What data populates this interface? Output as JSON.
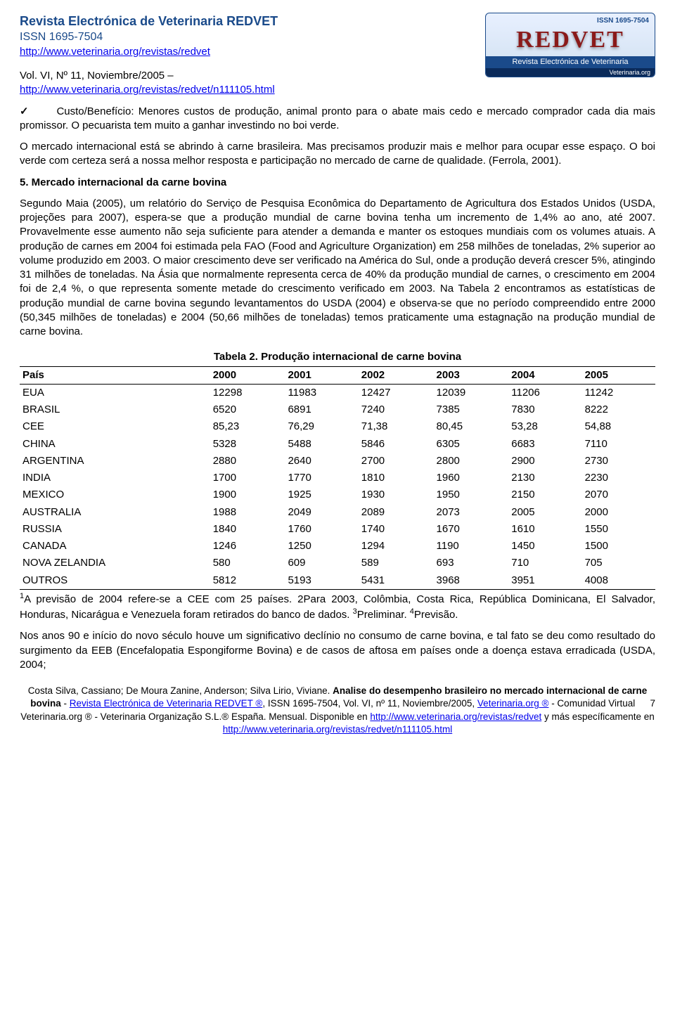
{
  "header": {
    "journal_title": "Revista Electrónica de Veterinaria REDVET",
    "issn_line": "ISSN 1695-7504",
    "url1": "http://www.veterinaria.org/revistas/redvet",
    "vol_line": "Vol. VI, Nº 11, Noviembre/2005 –",
    "url2": "http://www.veterinaria.org/revistas/redvet/n111105.html",
    "logo": {
      "issn": "ISSN 1695-7504",
      "main": "REDVET",
      "sub": "Revista Electrónica de Veterinaria",
      "foot": "Veterinaria.org"
    }
  },
  "body": {
    "check": "✓",
    "para1a": "Custo/Benefício: Menores custos de produção, animal pronto para o abate mais cedo e mercado comprador cada dia mais promissor. O pecuarista tem muito a ganhar investindo no boi verde.",
    "para2": "O mercado internacional está se abrindo à carne brasileira. Mas precisamos produzir mais e melhor para ocupar esse espaço. O boi verde com certeza será a nossa melhor resposta e participação no mercado de carne de qualidade. (Ferrola, 2001).",
    "heading5": "5. Mercado internacional da carne bovina",
    "para3": "Segundo Maia (2005), um relatório do Serviço de Pesquisa Econômica do Departamento de Agricultura dos Estados Unidos (USDA, projeções para 2007), espera-se que a produção mundial de carne bovina tenha um incremento de 1,4% ao ano, até 2007. Provavelmente esse aumento não seja suficiente para atender a demanda e manter os estoques mundiais com os volumes atuais. A produção de carnes em 2004 foi estimada pela FAO (Food and Agriculture Organization) em 258 milhões de toneladas, 2% superior ao volume produzido em 2003. O maior crescimento deve ser verificado na América do Sul, onde a produção deverá crescer 5%, atingindo 31 milhões de toneladas. Na Ásia que normalmente representa cerca de 40% da produção mundial de carnes, o crescimento em 2004 foi de 2,4 %, o que representa somente metade do crescimento verificado em 2003. Na Tabela 2 encontramos as estatísticas de produção mundial de carne bovina segundo levantamentos do USDA (2004) e observa-se que no período compreendido entre 2000 (50,345 milhões de toneladas) e 2004 (50,66 milhões de toneladas) temos praticamente uma estagnação na produção mundial de carne bovina.",
    "para4": "Nos anos 90 e início do novo século houve um significativo declínio no consumo de carne bovina, e tal fato se deu como resultado do surgimento da EEB (Encefalopatia Espongiforme Bovina) e de casos de aftosa em países onde a doença estava erradicada (USDA, 2004;"
  },
  "table": {
    "title": "Tabela 2. Produção internacional de carne bovina",
    "columns": [
      "País",
      "2000",
      "2001",
      "2002",
      "2003",
      "2004",
      "2005"
    ],
    "rows": [
      [
        "EUA",
        "12298",
        "11983",
        "12427",
        "12039",
        "11206",
        "11242"
      ],
      [
        "BRASIL",
        "6520",
        "6891",
        "7240",
        "7385",
        "7830",
        "8222"
      ],
      [
        "CEE",
        "85,23",
        "76,29",
        "71,38",
        "80,45",
        "53,28",
        "54,88"
      ],
      [
        "CHINA",
        "5328",
        "5488",
        "5846",
        "6305",
        "6683",
        "7110"
      ],
      [
        "ARGENTINA",
        "2880",
        "2640",
        "2700",
        "2800",
        "2900",
        "2730"
      ],
      [
        "INDIA",
        "1700",
        "1770",
        "1810",
        "1960",
        "2130",
        "2230"
      ],
      [
        "MEXICO",
        "1900",
        "1925",
        "1930",
        "1950",
        "2150",
        "2070"
      ],
      [
        "AUSTRALIA",
        "1988",
        "2049",
        "2089",
        "2073",
        "2005",
        "2000"
      ],
      [
        "RUSSIA",
        "1840",
        "1760",
        "1740",
        "1670",
        "1610",
        "1550"
      ],
      [
        "CANADA",
        "1246",
        "1250",
        "1294",
        "1190",
        "1450",
        "1500"
      ],
      [
        "NOVA ZELANDIA",
        "580",
        "609",
        "589",
        "693",
        "710",
        "705"
      ],
      [
        "OUTROS",
        "5812",
        "5193",
        "5431",
        "3968",
        "3951",
        "4008"
      ]
    ],
    "note_sup1": "1",
    "note_text1": "A previsão de 2004 refere-se a CEE com 25 países. 2Para 2003, Colômbia, Costa Rica, República Dominicana, El Salvador, Honduras, Nicarágua e Venezuela foram retirados do banco de dados. ",
    "note_sup3": "3",
    "note_text3": "Preliminar. ",
    "note_sup4": "4",
    "note_text4": "Previsão."
  },
  "footer": {
    "line1a": "Costa Silva, Cassiano; De Moura Zanine, Anderson; Silva Lirio, Viviane. ",
    "line1b": "Analise do desempenho brasileiro no mercado internacional de carne bovina",
    "line1c": " - ",
    "link1": "Revista Electrónica de Veterinaria REDVET ®",
    "line1d": ", ISSN 1695-7504, Vol. VI, nº 11, Noviembre/2005, ",
    "link2": "Veterinaria.org ®",
    "line1e": " - Comunidad Virtual Veterinaria.org ® - Veterinaria Organização S.L.® España. Mensual. Disponible en ",
    "link3": " http://www.veterinaria.org/revistas/redvet",
    "line1f": " y más específicamente en ",
    "link4": "http://www.veterinaria.org/revistas/redvet/n111105.html",
    "page_num": "7"
  }
}
